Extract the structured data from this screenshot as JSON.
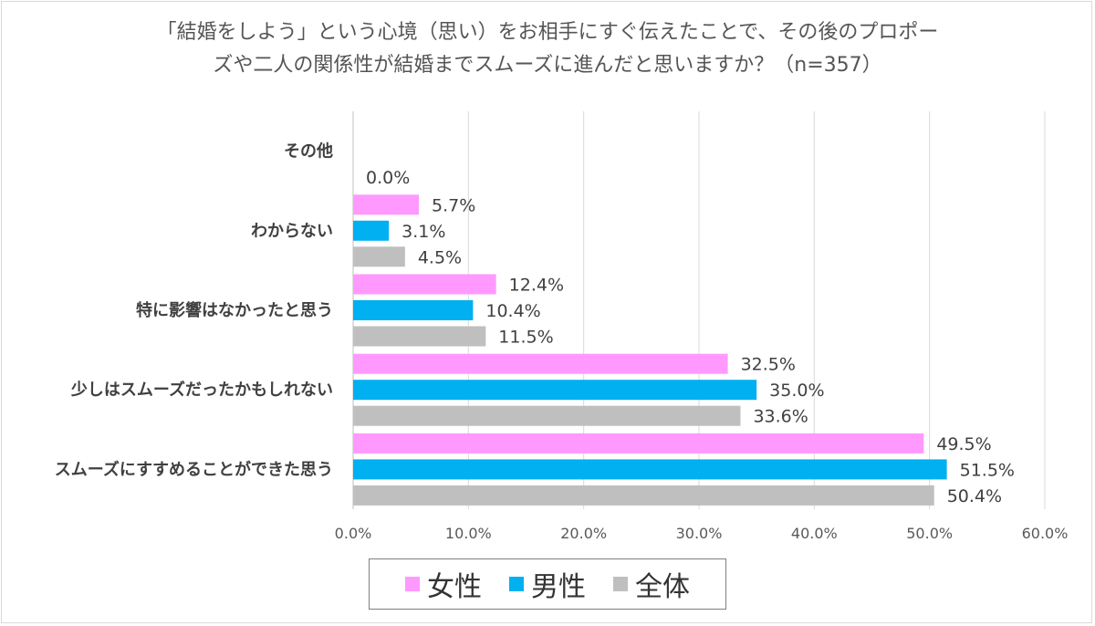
{
  "title": {
    "line1": "「結婚をしよう」という心境（思い）をお相手にすぐ伝えたことで、その後のプロポー",
    "line2": "ズや二人の関係性が結婚までスムーズに進んだと思いますか？（n=357）"
  },
  "chart_data": {
    "type": "bar",
    "orientation": "horizontal",
    "categories": [
      "その他",
      "わからない",
      "特に影響はなかったと思う",
      "少しはスムーズだったかもしれない",
      "スムーズにすすめることができた思う"
    ],
    "series": [
      {
        "name": "女性",
        "color": "#ff99ff",
        "values": [
          null,
          5.7,
          12.4,
          32.5,
          49.5
        ],
        "labels": [
          "",
          "5.7%",
          "12.4%",
          "32.5%",
          "49.5%"
        ]
      },
      {
        "name": "男性",
        "color": "#00b0f0",
        "values": [
          null,
          3.1,
          10.4,
          35.0,
          51.5
        ],
        "labels": [
          "",
          "3.1%",
          "10.4%",
          "35.0%",
          "51.5%"
        ]
      },
      {
        "name": "全体",
        "color": "#bfbfbf",
        "values": [
          0.0,
          4.5,
          11.5,
          33.6,
          50.4
        ],
        "labels": [
          "0.0%",
          "4.5%",
          "11.5%",
          "33.6%",
          "50.4%"
        ]
      }
    ],
    "xlim": [
      0,
      60
    ],
    "xticks": [
      "0.0%",
      "10.0%",
      "20.0%",
      "30.0%",
      "40.0%",
      "50.0%",
      "60.0%"
    ],
    "grid": true,
    "legend_position": "bottom"
  }
}
